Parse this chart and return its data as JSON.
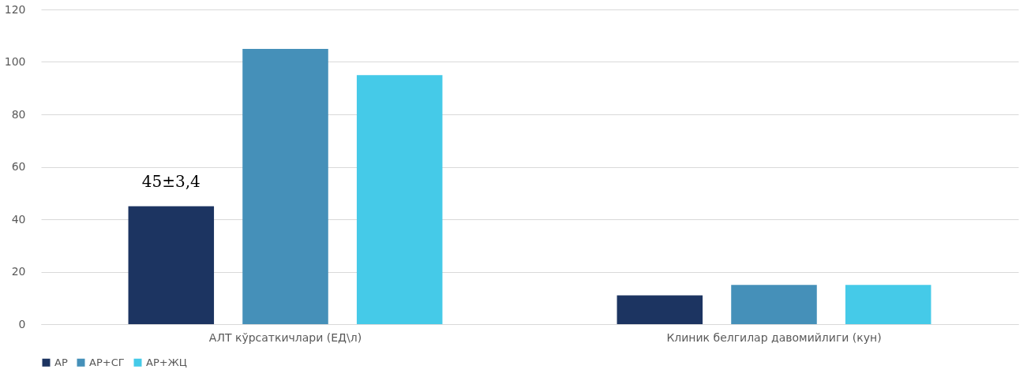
{
  "chart_data": {
    "type": "bar",
    "categories": [
      "АЛТ кўрсаткичлари (ЕД\\л)",
      "Клиник белгилар давомийлиги (кун)"
    ],
    "series": [
      {
        "name": "АР",
        "color": "#1c3461",
        "values": [
          45,
          11
        ]
      },
      {
        "name": "АР+СГ",
        "color": "#4590b9",
        "values": [
          105,
          15
        ]
      },
      {
        "name": "АР+ЖЦ",
        "color": "#45cae8",
        "values": [
          95,
          15
        ]
      }
    ],
    "ylim": [
      0,
      120
    ],
    "yticks": [
      0,
      20,
      40,
      60,
      80,
      100,
      120
    ],
    "grid": "y",
    "legend": "bottom",
    "annotations": [
      "45±3,4"
    ]
  }
}
